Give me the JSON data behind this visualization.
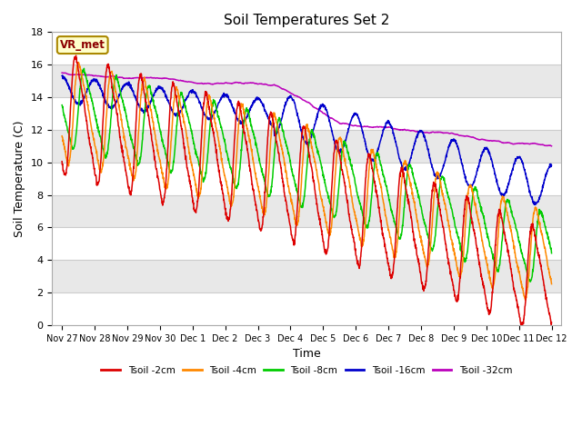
{
  "title": "Soil Temperatures Set 2",
  "xlabel": "Time",
  "ylabel": "Soil Temperature (C)",
  "ylim": [
    0,
    18
  ],
  "annotation": "VR_met",
  "legend_labels": [
    "Tsoil -2cm",
    "Tsoil -4cm",
    "Tsoil -8cm",
    "Tsoil -16cm",
    "Tsoil -32cm"
  ],
  "line_colors": [
    "#dd0000",
    "#ff8800",
    "#00cc00",
    "#0000cc",
    "#bb00bb"
  ],
  "xtick_labels": [
    "Nov 27",
    "Nov 28",
    "Nov 29",
    "Nov 30",
    "Dec 1",
    "Dec 2",
    "Dec 3",
    "Dec 4",
    "Dec 5",
    "Dec 6",
    "Dec 7",
    "Dec 8",
    "Dec 9",
    "Dec 10",
    "Dec 11",
    "Dec 12"
  ],
  "xtick_positions": [
    0,
    1,
    2,
    3,
    4,
    5,
    6,
    7,
    8,
    9,
    10,
    11,
    12,
    13,
    14,
    15
  ],
  "ytick_labels": [
    "0",
    "2",
    "4",
    "6",
    "8",
    "10",
    "12",
    "14",
    "16",
    "18"
  ],
  "ytick_positions": [
    0,
    2,
    4,
    6,
    8,
    10,
    12,
    14,
    16,
    18
  ],
  "band_colors": [
    "#ffffff",
    "#e8e8e8"
  ],
  "fig_facecolor": "#ffffff",
  "ax_facecolor": "#ffffff"
}
